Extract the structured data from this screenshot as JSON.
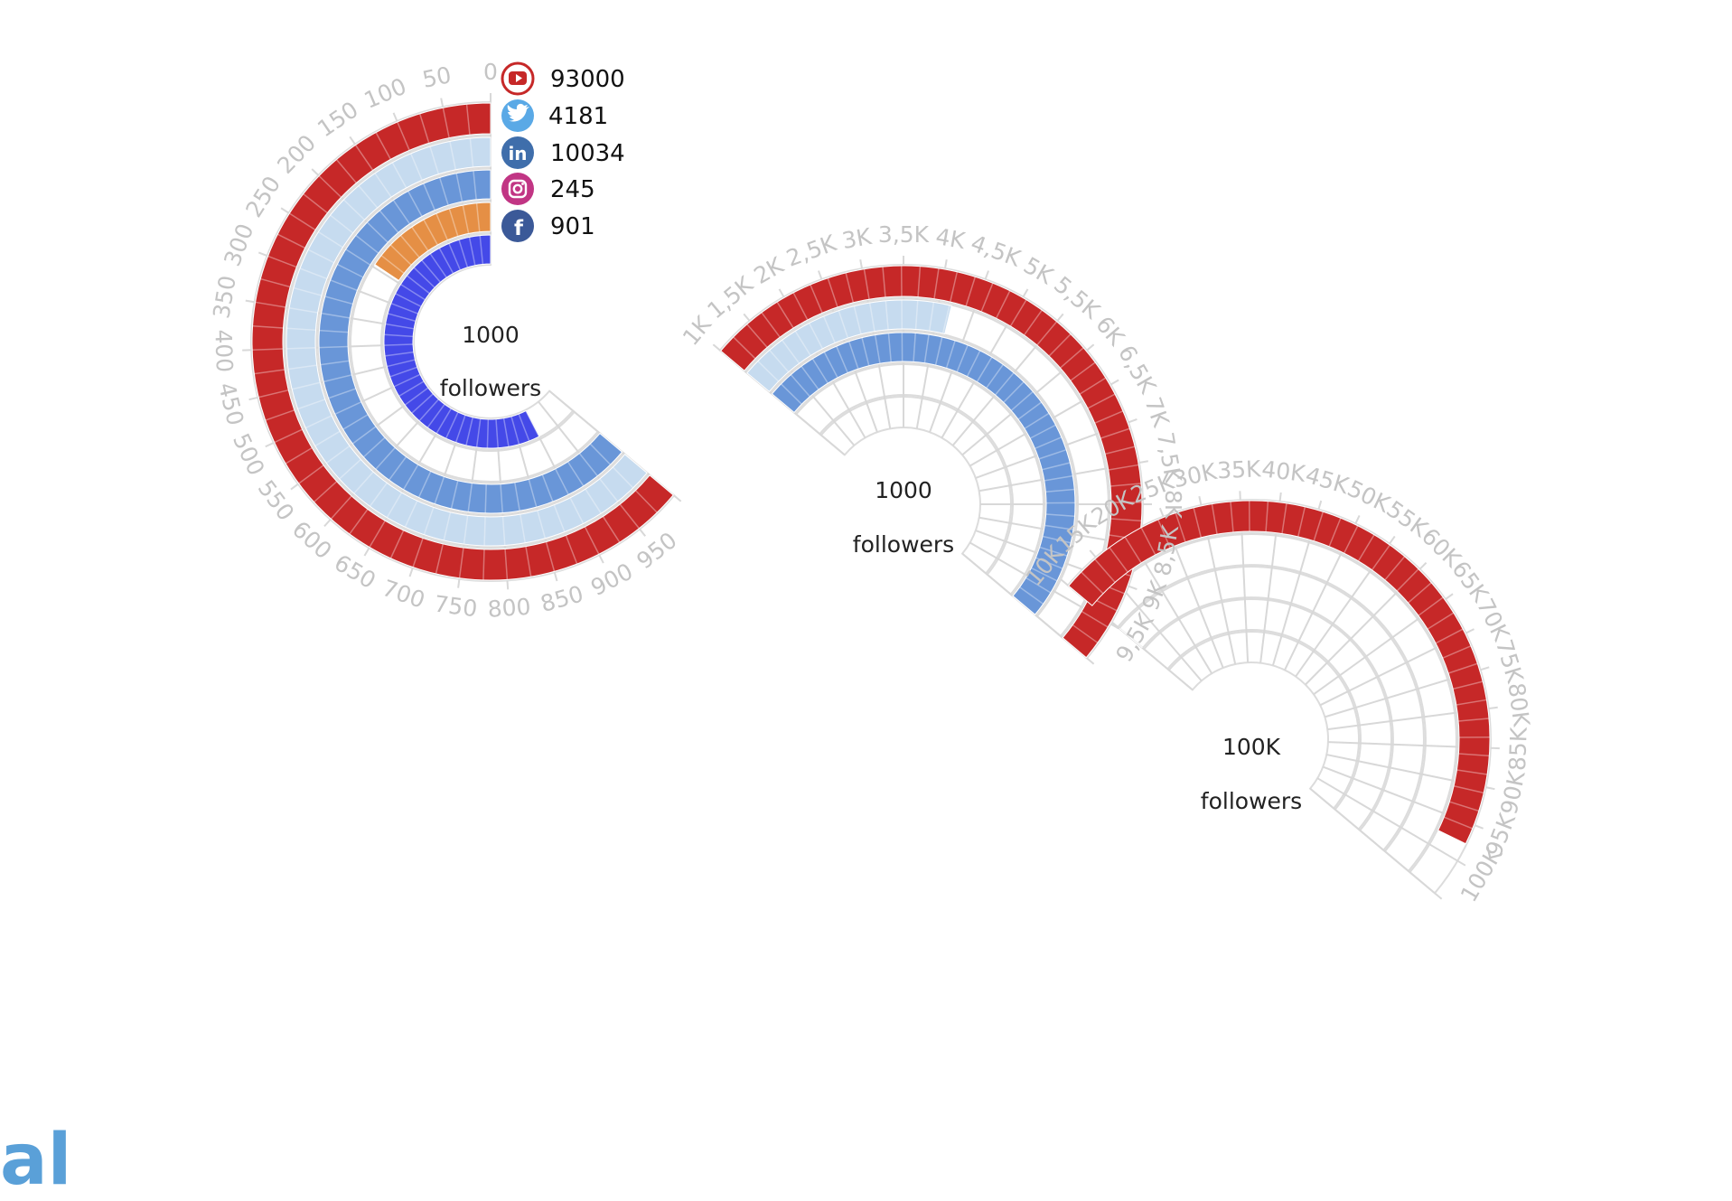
{
  "chart_data": {
    "type": "radial-bar",
    "series": [
      {
        "platform": "youtube",
        "icon": "youtube-icon",
        "value": 93000,
        "color": "#c62828"
      },
      {
        "platform": "twitter",
        "icon": "twitter-icon",
        "value": 4181,
        "color": "#c6dbef"
      },
      {
        "platform": "linkedin",
        "icon": "linkedin-icon",
        "value": 10034,
        "color": "#6996d8"
      },
      {
        "platform": "instagram",
        "icon": "instagram-icon",
        "value": 245,
        "color": "#e58f45"
      },
      {
        "platform": "facebook",
        "icon": "facebook-icon",
        "value": 901,
        "color": "#4449e8"
      }
    ],
    "segments": [
      {
        "center_label": "1000",
        "center_sublabel": "followers",
        "range": [
          0,
          1000
        ],
        "tick_labels": [
          "0",
          "50",
          "100",
          "150",
          "200",
          "250",
          "300",
          "350",
          "400",
          "450",
          "500",
          "550",
          "600",
          "650",
          "700",
          "750",
          "800",
          "850",
          "900",
          "950"
        ]
      },
      {
        "center_label": "1000",
        "center_sublabel": "followers",
        "range": [
          1000,
          10000
        ],
        "tick_labels": [
          "1K",
          "1,5K",
          "2K",
          "2,5K",
          "3K",
          "3,5K",
          "4K",
          "4,5K",
          "5K",
          "5,5K",
          "6K",
          "6,5K",
          "7K",
          "7,5K",
          "8K",
          "8,5K",
          "9K",
          "9,5K"
        ]
      },
      {
        "center_label": "100K",
        "center_sublabel": "followers",
        "range": [
          10000,
          100000
        ],
        "tick_labels": [
          "10K",
          "15K",
          "20K",
          "25K",
          "30K",
          "35K",
          "40K",
          "45K",
          "50K",
          "55K",
          "60K",
          "65K",
          "70K",
          "75K",
          "80K",
          "85K",
          "90K",
          "95K",
          "100K"
        ]
      }
    ]
  },
  "corner_logo_text": "al"
}
